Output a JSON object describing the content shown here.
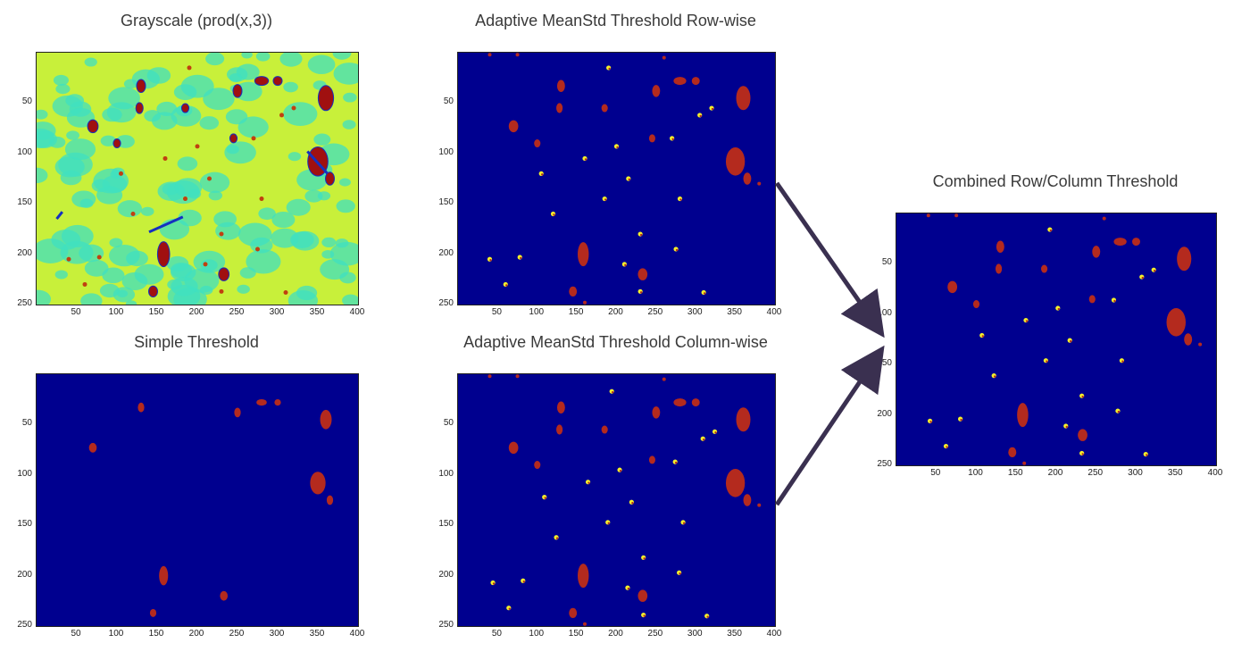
{
  "panels": [
    {
      "id": "grayscale",
      "title": "Grayscale (prod(x,3))",
      "style": "jet"
    },
    {
      "id": "simple",
      "title": "Simple Threshold",
      "style": "simple"
    },
    {
      "id": "row",
      "title": "Adaptive MeanStd Threshold Row-wise",
      "style": "thresh"
    },
    {
      "id": "col",
      "title": "Adaptive MeanStd Threshold Column-wise",
      "style": "thresh"
    },
    {
      "id": "combined",
      "title": "Combined Row/Column Threshold",
      "style": "thresh"
    }
  ],
  "axes": {
    "x_ticks": [
      "50",
      "100",
      "150",
      "200",
      "250",
      "300",
      "350",
      "400"
    ],
    "y_ticks": [
      "50",
      "100",
      "150",
      "200",
      "250"
    ],
    "x_range": [
      0,
      400
    ],
    "y_range": [
      0,
      250
    ]
  },
  "colors": {
    "background_blue": "#00008f",
    "blob_red": "#b42a1e",
    "speck_yellow": "#f4f02a",
    "jet_yellow": "#c8f03a",
    "jet_cyan": "#40e0c0",
    "arrow": "#3a3050"
  },
  "blobs": [
    [
      130,
      33,
      5,
      6
    ],
    [
      128,
      55,
      4,
      5
    ],
    [
      250,
      38,
      5,
      6
    ],
    [
      280,
      28,
      8,
      4
    ],
    [
      300,
      28,
      5,
      4
    ],
    [
      360,
      45,
      9,
      12
    ],
    [
      70,
      73,
      6,
      6
    ],
    [
      185,
      55,
      4,
      4
    ],
    [
      350,
      108,
      12,
      14
    ],
    [
      365,
      125,
      5,
      6
    ],
    [
      158,
      200,
      7,
      12
    ],
    [
      233,
      220,
      6,
      6
    ],
    [
      145,
      237,
      5,
      5
    ],
    [
      100,
      90,
      4,
      4
    ],
    [
      245,
      85,
      4,
      4
    ]
  ],
  "specks": [
    [
      190,
      15
    ],
    [
      320,
      55
    ],
    [
      305,
      62
    ],
    [
      200,
      93
    ],
    [
      280,
      145
    ],
    [
      120,
      160
    ],
    [
      230,
      180
    ],
    [
      78,
      203
    ],
    [
      40,
      205
    ],
    [
      210,
      210
    ],
    [
      230,
      237
    ],
    [
      275,
      195
    ],
    [
      60,
      230
    ],
    [
      310,
      238
    ],
    [
      160,
      105
    ],
    [
      215,
      125
    ],
    [
      270,
      85
    ],
    [
      185,
      145
    ],
    [
      105,
      120
    ]
  ]
}
